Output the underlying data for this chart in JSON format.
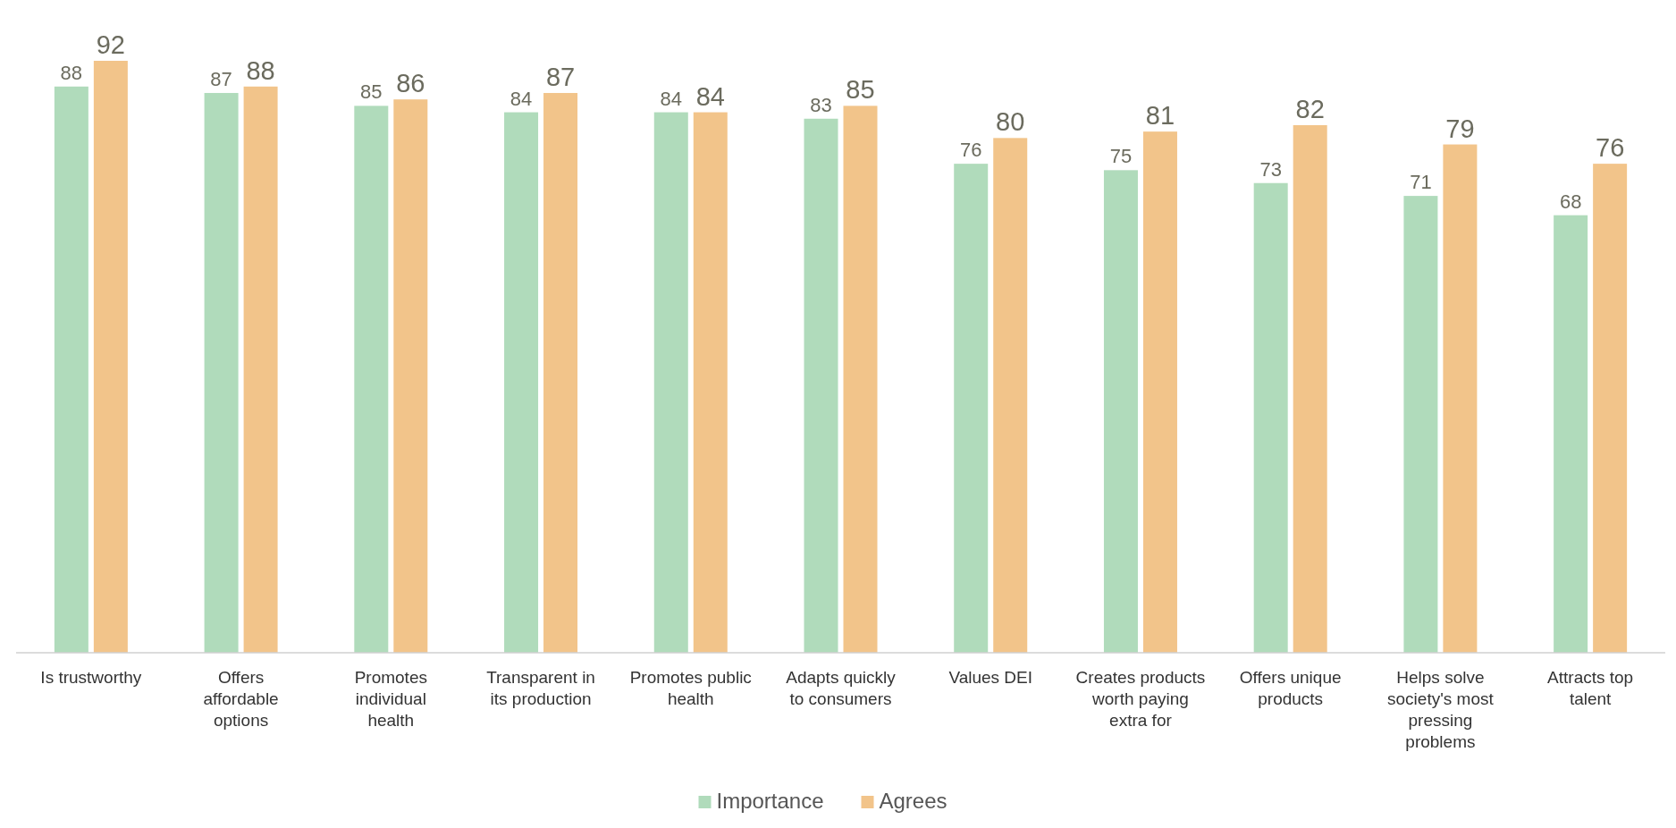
{
  "chart_data": {
    "type": "bar",
    "categories": [
      "Is trustworthy",
      "Offers affordable options",
      "Promotes individual health",
      "Transparent in its production",
      "Promotes public health",
      "Adapts quickly to consumers",
      "Values DEI",
      "Creates products worth paying extra for",
      "Offers unique products",
      "Helps solve society's most pressing problems",
      "Attracts top talent"
    ],
    "series": [
      {
        "name": "Importance",
        "color": "#b0dbbb",
        "values": [
          88,
          87,
          85,
          84,
          84,
          83,
          76,
          75,
          73,
          71,
          68
        ]
      },
      {
        "name": "Agrees",
        "color": "#f2c48a",
        "values": [
          92,
          88,
          86,
          87,
          84,
          85,
          80,
          81,
          82,
          79,
          76
        ]
      }
    ],
    "data_labels": true,
    "legend": "bottom",
    "grid": false
  }
}
